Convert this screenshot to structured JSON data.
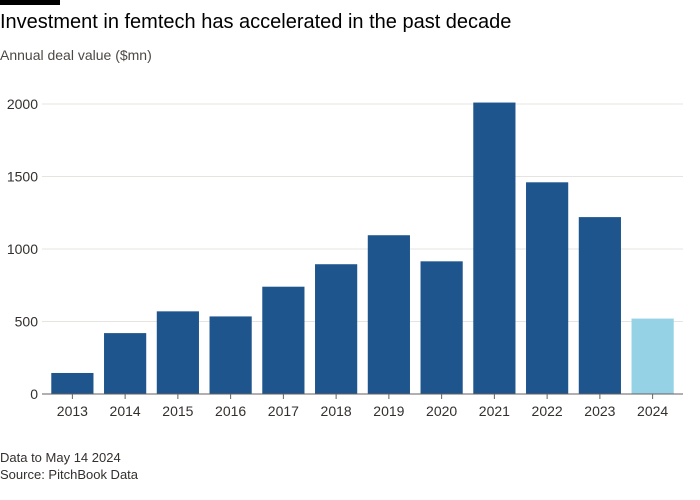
{
  "header": {
    "title": "Investment in femtech has accelerated in the past decade",
    "subtitle": "Annual deal value ($mn)"
  },
  "footer": {
    "note": "Data to May 14 2024",
    "source": "Source: PitchBook Data"
  },
  "colors": {
    "bar": "#1e558c",
    "highlight": "#96d2e6",
    "grid": "#e6e4e1",
    "axis": "#66605c",
    "text": "#33302e"
  },
  "chart_data": {
    "type": "bar",
    "title": "Investment in femtech has accelerated in the past decade",
    "subtitle": "Annual deal value ($mn)",
    "categories": [
      "2013",
      "2014",
      "2015",
      "2016",
      "2017",
      "2018",
      "2019",
      "2020",
      "2021",
      "2022",
      "2023",
      "2024"
    ],
    "values": [
      145,
      420,
      570,
      535,
      740,
      895,
      1095,
      915,
      2010,
      1460,
      1220,
      520
    ],
    "highlight_index": 11,
    "ylim": [
      0,
      2100
    ],
    "yticks": [
      0,
      500,
      1000,
      1500,
      2000
    ],
    "grid": true
  }
}
